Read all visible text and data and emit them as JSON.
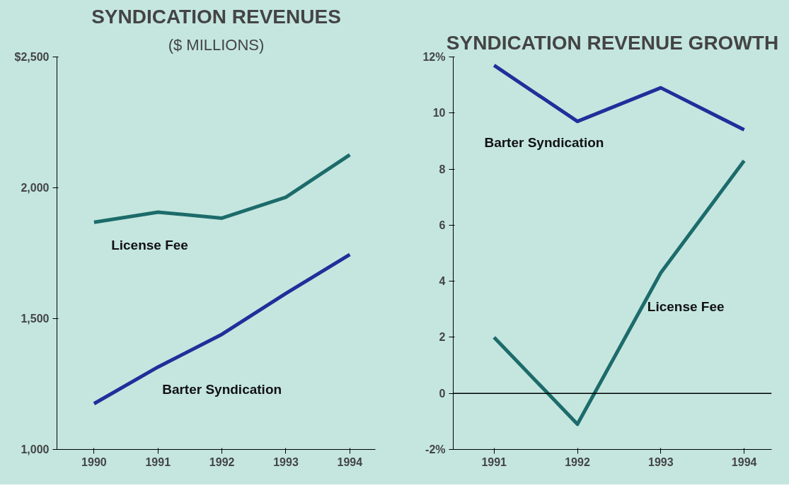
{
  "chart_data": [
    {
      "type": "line",
      "title": "SYNDICATION REVENUES",
      "subtitle": "($ MILLIONS)",
      "x": [
        1990,
        1991,
        1992,
        1993,
        1994
      ],
      "series": [
        {
          "name": "License Fee",
          "color": "#1d6b6b",
          "values": [
            1868,
            1907,
            1884,
            1964,
            2126
          ]
        },
        {
          "name": "Barter Syndication",
          "color": "#1f2f9a",
          "values": [
            1175,
            1315,
            1440,
            1596,
            1745
          ]
        }
      ],
      "xlim": [
        1989.42,
        1994.4
      ],
      "xticks": [
        1990,
        1991,
        1992,
        1993,
        1994
      ],
      "ylim": [
        1000,
        2500
      ],
      "yticks": [
        {
          "value": 1000,
          "label": "1,000"
        },
        {
          "value": 1500,
          "label": "1,500"
        },
        {
          "value": 2000,
          "label": "2,000"
        },
        {
          "value": 2500,
          "label": "$2,500"
        }
      ],
      "grid": false,
      "legend": false,
      "marker": "none",
      "line_style": "solid"
    },
    {
      "type": "line",
      "title": "SYNDICATION REVENUE GROWTH",
      "x": [
        1991,
        1992,
        1993,
        1994
      ],
      "series": [
        {
          "name": "Barter Syndication",
          "color": "#1f2f9a",
          "values": [
            11.7,
            9.7,
            10.9,
            9.4
          ]
        },
        {
          "name": "License Fee",
          "color": "#1d6b6b",
          "values": [
            2.0,
            -1.1,
            4.3,
            8.3
          ]
        }
      ],
      "xlim": [
        1990.51,
        1994.33
      ],
      "xticks": [
        1991,
        1992,
        1993,
        1994
      ],
      "ylim": [
        -2,
        12
      ],
      "yticks": [
        {
          "value": -2,
          "label": "-2%"
        },
        0,
        2,
        4,
        6,
        8,
        10,
        {
          "value": 12,
          "label": "12%"
        }
      ],
      "ref_lines": [
        {
          "axis": "y",
          "value": 0,
          "color": "#000000"
        }
      ],
      "grid": false,
      "legend": false,
      "marker": "none",
      "line_style": "solid"
    }
  ]
}
